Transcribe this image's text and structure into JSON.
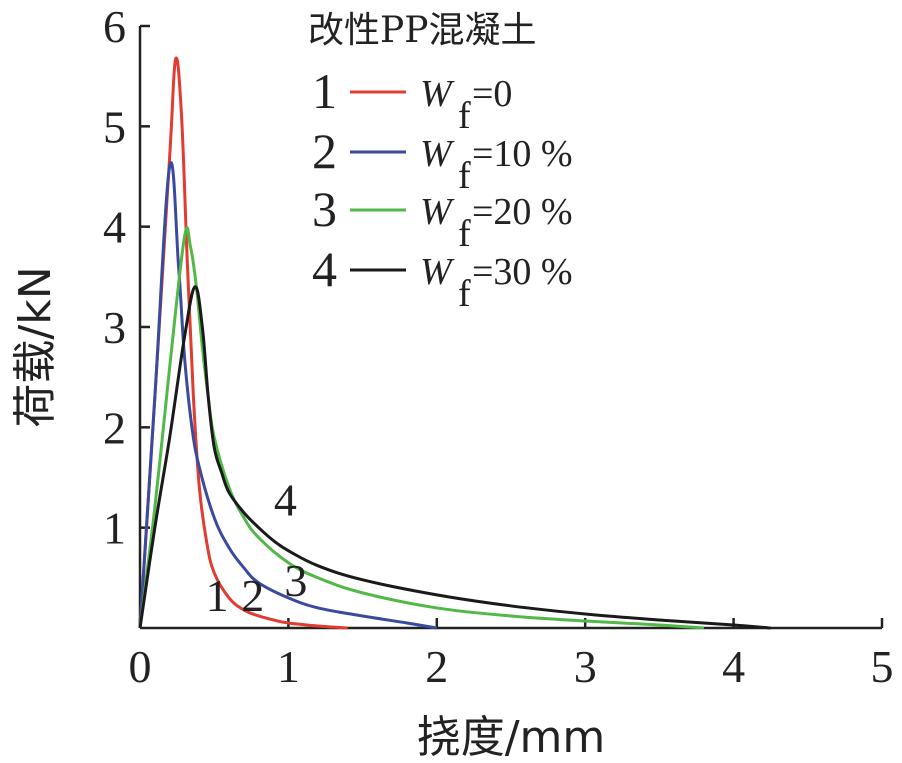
{
  "chart_data": {
    "type": "line",
    "xlabel": "挠度/mm",
    "ylabel": "荷载/kN",
    "xlim": [
      0,
      5
    ],
    "ylim": [
      0,
      6
    ],
    "x_ticks": [
      "0",
      "1",
      "2",
      "3",
      "4",
      "5"
    ],
    "y_ticks": [
      "1",
      "2",
      "3",
      "4",
      "5",
      "6"
    ],
    "grid": false,
    "legend": {
      "title": "改性PP混凝土",
      "placement": "top-center",
      "entries": [
        {
          "num": "1",
          "symbol": "W",
          "sub": "f",
          "rest": " =0"
        },
        {
          "num": "2",
          "symbol": "W",
          "sub": "f",
          "rest": " =10 %"
        },
        {
          "num": "3",
          "symbol": "W",
          "sub": "f",
          "rest": " =20 %"
        },
        {
          "num": "4",
          "symbol": "W",
          "sub": "f",
          "rest": " =30 %"
        }
      ]
    },
    "series": [
      {
        "label": "1",
        "color": "#e03c31",
        "x": [
          0,
          0.1,
          0.2,
          0.24,
          0.28,
          0.32,
          0.36,
          0.4,
          0.45,
          0.5,
          0.6,
          0.7,
          0.8,
          0.9,
          1.0,
          1.2,
          1.4
        ],
        "y": [
          0,
          2.3,
          4.7,
          5.67,
          5.1,
          3.6,
          2.3,
          1.4,
          0.85,
          0.55,
          0.3,
          0.18,
          0.12,
          0.08,
          0.05,
          0.02,
          0.0
        ]
      },
      {
        "label": "2",
        "color": "#3a4a9c",
        "x": [
          0,
          0.1,
          0.2,
          0.26,
          0.3,
          0.35,
          0.4,
          0.5,
          0.6,
          0.7,
          0.8,
          1.0,
          1.2,
          1.5,
          1.8,
          2.0
        ],
        "y": [
          0,
          2.3,
          4.6,
          3.6,
          2.7,
          2.0,
          1.6,
          1.1,
          0.8,
          0.6,
          0.45,
          0.3,
          0.2,
          0.12,
          0.05,
          0.0
        ]
      },
      {
        "label": "3",
        "color": "#52b848",
        "x": [
          0,
          0.1,
          0.2,
          0.3,
          0.34,
          0.38,
          0.42,
          0.46,
          0.5,
          0.6,
          0.7,
          0.8,
          1.0,
          1.2,
          1.5,
          2.0,
          2.5,
          3.0,
          3.5,
          3.8
        ],
        "y": [
          0,
          1.2,
          2.6,
          3.9,
          3.8,
          3.4,
          2.8,
          2.3,
          1.9,
          1.4,
          1.1,
          0.9,
          0.65,
          0.5,
          0.35,
          0.2,
          0.12,
          0.07,
          0.03,
          0.0
        ]
      },
      {
        "label": "4",
        "color": "#1a1a1a",
        "x": [
          0,
          0.1,
          0.2,
          0.3,
          0.37,
          0.42,
          0.46,
          0.5,
          0.55,
          0.6,
          0.7,
          0.8,
          0.9,
          1.0,
          1.2,
          1.5,
          2.0,
          2.5,
          3.0,
          3.5,
          4.0,
          4.25
        ],
        "y": [
          0,
          1.0,
          1.9,
          2.9,
          3.4,
          3.0,
          2.3,
          1.8,
          1.55,
          1.35,
          1.15,
          1.0,
          0.87,
          0.77,
          0.62,
          0.48,
          0.33,
          0.22,
          0.14,
          0.08,
          0.03,
          0.0
        ]
      }
    ],
    "curve_labels": [
      {
        "text": "1",
        "x": 0.52,
        "y": 0.33
      },
      {
        "text": "2",
        "x": 0.76,
        "y": 0.33
      },
      {
        "text": "3",
        "x": 1.05,
        "y": 0.48
      },
      {
        "text": "4",
        "x": 0.98,
        "y": 1.28
      }
    ]
  }
}
